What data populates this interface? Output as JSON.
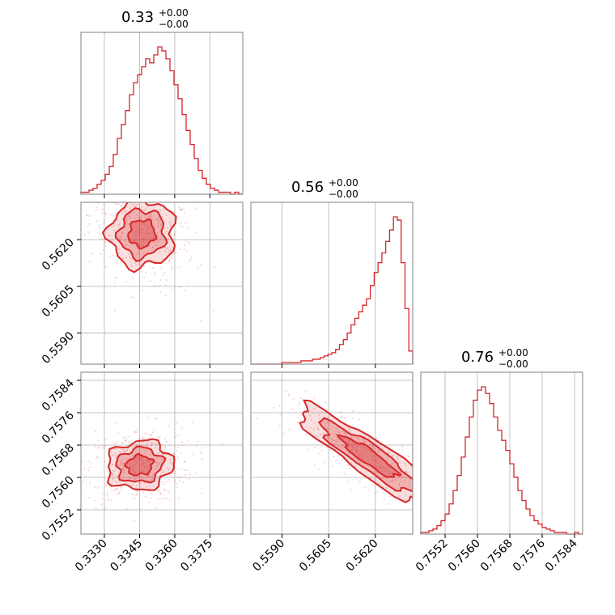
{
  "chart_data": {
    "type": "corner",
    "color": "#d62728",
    "parameters": [
      {
        "title": {
          "main": "0.33",
          "upper": "+0.00",
          "lower": "−0.00"
        },
        "range": [
          0.332,
          0.3389
        ],
        "ticks": [
          "0.3330",
          "0.3345",
          "0.3360",
          "0.3375"
        ],
        "hist_counts": [
          1,
          1,
          2,
          3,
          5,
          7,
          10,
          14,
          20,
          28,
          35,
          42,
          50,
          56,
          60,
          64,
          68,
          66,
          70,
          74,
          72,
          68,
          62,
          55,
          48,
          40,
          32,
          25,
          18,
          12,
          8,
          5,
          3,
          2,
          1,
          1,
          1,
          0,
          1,
          0
        ]
      },
      {
        "title": {
          "main": "0.56",
          "upper": "+0.00",
          "lower": "−0.00"
        },
        "range": [
          0.558,
          0.5632
        ],
        "ticks": [
          "0.5590",
          "0.5605",
          "0.5620"
        ],
        "hist_counts": [
          0,
          0,
          0,
          0,
          0,
          0,
          0,
          0,
          1,
          1,
          1,
          1,
          1,
          2,
          2,
          2,
          3,
          3,
          4,
          5,
          6,
          7,
          9,
          12,
          15,
          19,
          24,
          28,
          32,
          36,
          40,
          48,
          56,
          62,
          68,
          75,
          82,
          90,
          88,
          62,
          34,
          8
        ]
      },
      {
        "title": {
          "main": "0.76",
          "upper": "+0.00",
          "lower": "−0.00"
        },
        "range": [
          0.7546,
          0.7586
        ],
        "ticks": [
          "0.7552",
          "0.7560",
          "0.7568",
          "0.7576",
          "0.7584"
        ],
        "hist_counts": [
          1,
          1,
          2,
          3,
          5,
          8,
          12,
          18,
          26,
          35,
          46,
          58,
          70,
          80,
          86,
          88,
          84,
          78,
          70,
          62,
          56,
          50,
          42,
          34,
          26,
          20,
          15,
          11,
          8,
          6,
          4,
          3,
          2,
          1,
          1,
          1,
          0,
          0,
          1,
          0
        ]
      }
    ],
    "pairs": [
      {
        "x": 0,
        "y": 1,
        "center": [
          0.3346,
          0.5622
        ],
        "spread": [
          0.0007,
          0.00055
        ],
        "corr": -0.35
      },
      {
        "x": 0,
        "y": 2,
        "center": [
          0.3345,
          0.7563
        ],
        "spread": [
          0.0007,
          0.0003
        ],
        "corr": 0.1
      },
      {
        "x": 1,
        "y": 2,
        "center": [
          0.5618,
          0.7565
        ],
        "spread": [
          0.0008,
          0.0004
        ],
        "corr": -0.85
      }
    ]
  }
}
